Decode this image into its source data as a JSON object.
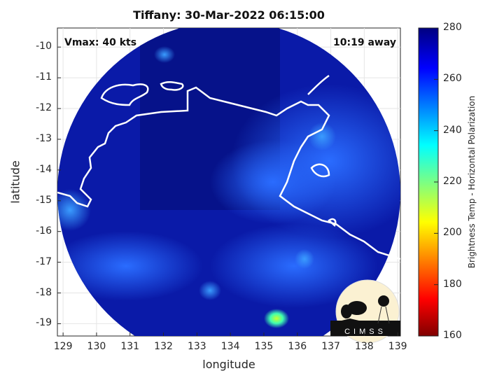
{
  "title": "Tiffany: 30-Mar-2022 06:15:00",
  "annotations": {
    "vmax": "Vmax: 40 kts",
    "distance": "10:19 away"
  },
  "x_axis": {
    "label": "longitude",
    "ticks": [
      "129",
      "130",
      "131",
      "132",
      "133",
      "134",
      "135",
      "136",
      "137",
      "138",
      "139"
    ],
    "range": [
      128.83,
      139.08
    ]
  },
  "y_axis": {
    "label": "latitude",
    "ticks": [
      "-10",
      "-11",
      "-12",
      "-13",
      "-14",
      "-15",
      "-16",
      "-17",
      "-18",
      "-19"
    ],
    "range": [
      -19.4,
      -9.38
    ]
  },
  "colorbar": {
    "label": "Brightness Temp - Horizontal Polarization",
    "ticks": [
      "280",
      "260",
      "240",
      "220",
      "200",
      "180",
      "160"
    ],
    "range": [
      160,
      280
    ],
    "colormap": "jet"
  },
  "logo": {
    "text": "CIMSS"
  },
  "colors": {
    "background_swath": "#0a1aa0",
    "coastline": "#ffffff"
  }
}
